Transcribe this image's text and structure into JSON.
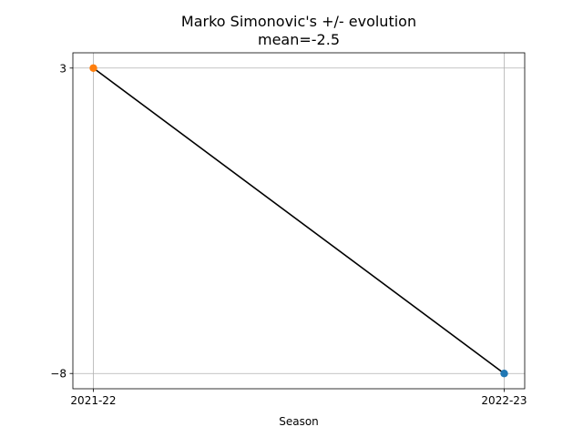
{
  "chart_data": {
    "type": "line",
    "title": "Marko Simonovic's +/- evolution",
    "subtitle": "mean=-2.5",
    "xlabel": "Season",
    "ylabel": "",
    "categories": [
      "2021-22",
      "2022-23"
    ],
    "yticks": [
      3,
      -8
    ],
    "ytick_labels": [
      "3",
      "−8"
    ],
    "ylim": [
      -8.55,
      3.55
    ],
    "grid": true,
    "series": [
      {
        "values": [
          3,
          -8
        ],
        "line_color": "#000000",
        "point_colors": [
          "#ff7f0e",
          "#1f77b4"
        ]
      }
    ]
  }
}
